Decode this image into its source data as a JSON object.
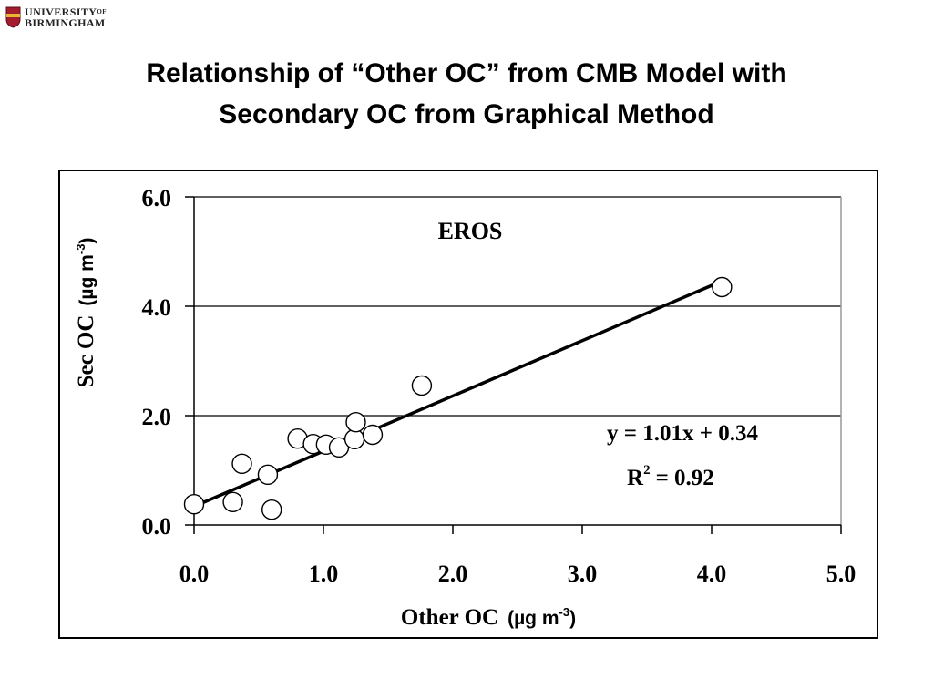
{
  "logo": {
    "line1": "UNIVERSITY",
    "line1_small": "OF",
    "line2": "BIRMINGHAM",
    "colors": {
      "crest": "#a31d2f",
      "crest_accent": "#e6b534"
    }
  },
  "slide": {
    "title_line1": "Relationship of “Other OC” from CMB Model with",
    "title_line2": "Secondary OC from Graphical Method"
  },
  "chart_data": {
    "type": "scatter",
    "annotation": "EROS",
    "xlabel_main": "Other OC",
    "xlabel_units": "(µg m",
    "xlabel_exp": "-3",
    "xlabel_close": ")",
    "ylabel_main": "Sec OC",
    "ylabel_units": "(µg m",
    "ylabel_exp": "-3",
    "ylabel_close": ")",
    "xlim": [
      0,
      5
    ],
    "ylim": [
      0,
      6
    ],
    "x_ticks": [
      "0.0",
      "1.0",
      "2.0",
      "3.0",
      "4.0",
      "5.0"
    ],
    "y_ticks": [
      "0.0",
      "2.0",
      "4.0",
      "6.0"
    ],
    "grid": "horizontal",
    "series": [
      {
        "x": [
          0.0,
          0.3,
          0.37,
          0.57,
          0.6,
          0.8,
          0.92,
          1.02,
          1.12,
          1.24,
          1.25,
          1.38,
          1.76,
          4.08
        ],
        "y": [
          0.38,
          0.42,
          1.12,
          0.92,
          0.28,
          1.58,
          1.48,
          1.47,
          1.42,
          1.57,
          1.88,
          1.65,
          2.55,
          4.35
        ]
      }
    ],
    "trendline": {
      "slope": 1.01,
      "intercept": 0.34,
      "x_range": [
        0,
        4.08
      ]
    },
    "equation": "y = 1.01x + 0.34",
    "r2_label": "R",
    "r2_exp": "2",
    "r2_value": "= 0.92"
  }
}
